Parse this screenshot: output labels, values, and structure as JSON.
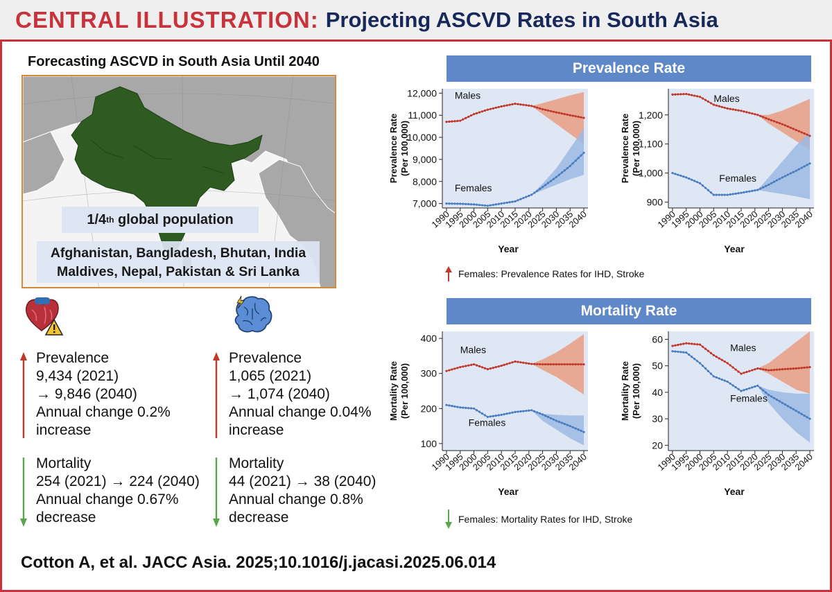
{
  "header": {
    "label": "CENTRAL ILLUSTRATION:",
    "title": "Projecting ASCVD Rates in South Asia"
  },
  "left": {
    "title": "Forecasting ASCVD in South Asia Until 2040",
    "population_main": "1/4",
    "population_sup": "th",
    "population_rest": " global population",
    "countries_line1": "Afghanistan, Bangladesh, Bhutan, India",
    "countries_line2": "Maldives, Nepal, Pakistan & Sri Lanka"
  },
  "ihd": {
    "icon": "heart-warning-icon",
    "prevalence": [
      "Prevalence",
      "9,434 (2021)",
      "→ 9,846 (2040)",
      "Annual change 0.2%",
      "increase"
    ],
    "mortality": [
      "Mortality",
      "254 (2021) → 224 (2040)",
      "Annual change 0.67%",
      "decrease"
    ]
  },
  "stroke": {
    "icon": "brain-lightning-icon",
    "prevalence": [
      "Prevalence",
      "1,065 (2021)",
      "→ 1,074 (2040)",
      "Annual change 0.04%",
      "increase"
    ],
    "mortality": [
      "Mortality",
      "44 (2021) → 38 (2040)",
      "Annual change 0.8%",
      "decrease"
    ]
  },
  "banners": {
    "prevalence": "Prevalence Rate",
    "mortality": "Mortality Rate"
  },
  "notes": {
    "prevalence": "Females: Prevalence Rates for IHD, Stroke",
    "mortality": "Females: Mortality Rates for IHD, Stroke"
  },
  "colors": {
    "accent": "#c8323b",
    "navy": "#18285a",
    "banner": "#5f88c9",
    "male": "#c0392b",
    "female": "#4a7cc0",
    "up": "#c0392b",
    "down": "#5aa54e"
  },
  "citation": "Cotton A, et al. JACC Asia. 2025;10.1016/j.jacasi.2025.06.014",
  "chart_data": [
    {
      "type": "line",
      "ylabel": "Prevalence Rate (Per 100,000)",
      "xlabel": "Year",
      "ylim": [
        6800,
        12200
      ],
      "yticks": [
        7000,
        8000,
        9000,
        10000,
        11000,
        12000
      ],
      "ytick_labels": [
        "7,000",
        "8,000",
        "9,000",
        "10,000",
        "11,000",
        "12,000"
      ],
      "xticks": [
        1990,
        1995,
        2000,
        2005,
        2010,
        2015,
        2020,
        2025,
        2030,
        2035,
        2040
      ],
      "forecast_start": 2021,
      "series": [
        {
          "name": "Males",
          "color": "#c0392b",
          "band": "#ea9d82",
          "x": [
            1990,
            1995,
            2000,
            2005,
            2010,
            2015,
            2021,
            2025,
            2030,
            2035,
            2040
          ],
          "values": [
            10700,
            10750,
            11050,
            11250,
            11400,
            11520,
            11420,
            11270,
            11130,
            11000,
            10880
          ],
          "band_x": [
            2021,
            2025,
            2030,
            2035,
            2040
          ],
          "band_low": [
            11420,
            11050,
            10600,
            10150,
            9700
          ],
          "band_high": [
            11420,
            11550,
            11720,
            11900,
            12050
          ]
        },
        {
          "name": "Females",
          "color": "#4a7cc0",
          "band": "#9cb8e3",
          "x": [
            1990,
            1995,
            2000,
            2005,
            2010,
            2015,
            2021,
            2025,
            2030,
            2035,
            2040
          ],
          "values": [
            7000,
            6990,
            6960,
            6900,
            7000,
            7100,
            7400,
            7750,
            8200,
            8700,
            9300
          ],
          "band_x": [
            2021,
            2025,
            2030,
            2035,
            2040
          ],
          "band_low": [
            7400,
            7600,
            7850,
            8100,
            8300
          ],
          "band_high": [
            7400,
            7900,
            8600,
            9500,
            10400
          ]
        }
      ]
    },
    {
      "type": "line",
      "ylabel": "Prevalence Rate (Per 100,000)",
      "xlabel": "Year",
      "ylim": [
        880,
        1290
      ],
      "yticks": [
        900,
        1000,
        1100,
        1200
      ],
      "ytick_labels": [
        "900",
        "1,000",
        "1,100",
        "1,200"
      ],
      "xticks": [
        1990,
        1995,
        2000,
        2005,
        2010,
        2015,
        2020,
        2025,
        2030,
        2035,
        2040
      ],
      "forecast_start": 2021,
      "series": [
        {
          "name": "Males",
          "color": "#c0392b",
          "band": "#ea9d82",
          "x": [
            1990,
            1995,
            2000,
            2005,
            2010,
            2015,
            2021,
            2025,
            2030,
            2035,
            2040
          ],
          "values": [
            1270,
            1272,
            1262,
            1235,
            1222,
            1214,
            1200,
            1185,
            1168,
            1148,
            1128
          ],
          "band_x": [
            2021,
            2025,
            2030,
            2035,
            2040
          ],
          "band_low": [
            1200,
            1170,
            1140,
            1110,
            1080
          ],
          "band_high": [
            1200,
            1200,
            1215,
            1235,
            1255
          ]
        },
        {
          "name": "Females",
          "color": "#4a7cc0",
          "band": "#9cb8e3",
          "x": [
            1990,
            1995,
            2000,
            2005,
            2010,
            2015,
            2021,
            2025,
            2030,
            2035,
            2040
          ],
          "values": [
            1000,
            985,
            965,
            925,
            925,
            932,
            942,
            960,
            985,
            1008,
            1033
          ],
          "band_x": [
            2021,
            2025,
            2030,
            2035,
            2040
          ],
          "band_low": [
            942,
            935,
            928,
            920,
            910
          ],
          "band_high": [
            942,
            985,
            1040,
            1095,
            1140
          ]
        }
      ]
    },
    {
      "type": "line",
      "ylabel": "Mortality Rate (Per 100,000)",
      "xlabel": "Year",
      "ylim": [
        80,
        420
      ],
      "yticks": [
        100,
        200,
        300,
        400
      ],
      "ytick_labels": [
        "100",
        "200",
        "300",
        "400"
      ],
      "xticks": [
        1990,
        1995,
        2000,
        2005,
        2010,
        2015,
        2020,
        2025,
        2030,
        2035,
        2040
      ],
      "forecast_start": 2021,
      "series": [
        {
          "name": "Males",
          "color": "#c0392b",
          "band": "#ea9d82",
          "x": [
            1990,
            1995,
            2000,
            2005,
            2010,
            2015,
            2021,
            2025,
            2030,
            2035,
            2040
          ],
          "values": [
            307,
            318,
            326,
            312,
            322,
            334,
            327,
            326,
            326,
            326,
            326
          ],
          "band_x": [
            2021,
            2025,
            2030,
            2035,
            2040
          ],
          "band_low": [
            327,
            310,
            290,
            265,
            240
          ],
          "band_high": [
            327,
            340,
            360,
            385,
            412
          ]
        },
        {
          "name": "Females",
          "color": "#4a7cc0",
          "band": "#9cb8e3",
          "x": [
            1990,
            1995,
            2000,
            2005,
            2010,
            2015,
            2021,
            2025,
            2030,
            2035,
            2040
          ],
          "values": [
            210,
            203,
            200,
            176,
            182,
            190,
            195,
            183,
            165,
            150,
            133
          ],
          "band_x": [
            2021,
            2025,
            2030,
            2035,
            2040
          ],
          "band_low": [
            195,
            165,
            140,
            115,
            95
          ],
          "band_high": [
            195,
            185,
            182,
            180,
            180
          ]
        }
      ]
    },
    {
      "type": "line",
      "ylabel": "Mortality Rate (Per 100,000)",
      "xlabel": "Year",
      "ylim": [
        18,
        63
      ],
      "yticks": [
        20,
        30,
        40,
        50,
        60
      ],
      "ytick_labels": [
        "20",
        "30",
        "40",
        "50",
        "60"
      ],
      "xticks": [
        1990,
        1995,
        2000,
        2005,
        2010,
        2015,
        2020,
        2025,
        2030,
        2035,
        2040
      ],
      "forecast_start": 2021,
      "series": [
        {
          "name": "Males",
          "color": "#c0392b",
          "band": "#ea9d82",
          "x": [
            1990,
            1995,
            2000,
            2005,
            2010,
            2015,
            2021,
            2025,
            2030,
            2035,
            2040
          ],
          "values": [
            57.5,
            58.5,
            58,
            54,
            51,
            47,
            49,
            48.3,
            48.7,
            49,
            49.5
          ],
          "band_x": [
            2021,
            2025,
            2030,
            2035,
            2040
          ],
          "band_low": [
            49,
            47,
            44,
            41,
            39.5
          ],
          "band_high": [
            49,
            51,
            55,
            59,
            63
          ]
        },
        {
          "name": "Females",
          "color": "#4a7cc0",
          "band": "#9cb8e3",
          "x": [
            1990,
            1995,
            2000,
            2005,
            2010,
            2015,
            2021,
            2025,
            2030,
            2035,
            2040
          ],
          "values": [
            55.5,
            55,
            51,
            46,
            44,
            40.5,
            42.5,
            39,
            36,
            33,
            30
          ],
          "band_x": [
            2021,
            2025,
            2030,
            2035,
            2040
          ],
          "band_low": [
            42.5,
            36,
            30,
            25,
            21
          ],
          "band_high": [
            42.5,
            41,
            40,
            39.5,
            39.5
          ]
        }
      ]
    }
  ]
}
